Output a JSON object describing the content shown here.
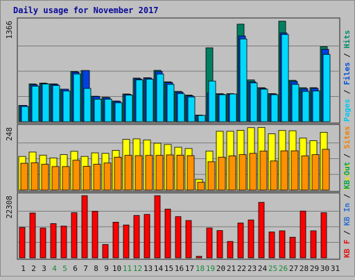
{
  "chart_data": {
    "type": "bar",
    "title": "Daily usage for November 2017",
    "categories": [
      "1",
      "2",
      "3",
      "4",
      "5",
      "6",
      "7",
      "8",
      "9",
      "10",
      "11",
      "12",
      "13",
      "14",
      "15",
      "16",
      "17",
      "18",
      "19",
      "20",
      "21",
      "22",
      "23",
      "24",
      "25",
      "26",
      "27",
      "28",
      "29",
      "30",
      "31"
    ],
    "weekend_days": [
      4,
      5,
      11,
      12,
      18,
      19,
      25,
      26
    ],
    "panels": [
      {
        "id": "hits-files-pages",
        "max_label": "1366",
        "ymax": 1366,
        "side_label_parts": [
          {
            "text": "Pages",
            "color": "#00c8f0"
          },
          {
            "text": " / ",
            "color": "#0a0a0a"
          },
          {
            "text": "Files",
            "color": "#0050e0"
          },
          {
            "text": " / ",
            "color": "#0a0a0a"
          },
          {
            "text": "Hits",
            "color": "#008a6a"
          }
        ],
        "series": [
          {
            "name": "Hits",
            "color": "#008060",
            "values": [
              220,
              512,
              522,
              512,
              440,
              680,
              692,
              345,
              330,
              280,
              375,
              590,
              595,
              695,
              540,
              410,
              360,
              90,
              1000,
              380,
              380,
              1320,
              565,
              460,
              380,
              1360,
              560,
              460,
              460,
              1015,
              0
            ]
          },
          {
            "name": "Files",
            "color": "#0040e0",
            "values": [
              220,
              500,
              515,
              505,
              440,
              670,
              692,
              340,
              325,
              275,
              370,
              580,
              590,
              680,
              530,
              400,
              350,
              85,
              390,
              370,
              370,
              1160,
              540,
              450,
              375,
              1200,
              545,
              445,
              450,
              980,
              0
            ]
          },
          {
            "name": "Pages",
            "color": "#00d8ff",
            "values": [
              205,
              480,
              510,
              490,
              415,
              645,
              450,
              305,
              305,
              255,
              360,
              565,
              575,
              645,
              505,
              380,
              335,
              85,
              550,
              365,
              375,
              1120,
              525,
              440,
              365,
              1180,
              505,
              410,
              415,
              910,
              0
            ]
          }
        ]
      },
      {
        "id": "visits-sites",
        "max_label": "248",
        "ymax": 248,
        "side_label_parts": [
          {
            "text": "Visits",
            "color": "#e8e800"
          },
          {
            "text": " / ",
            "color": "#0a0a0a"
          },
          {
            "text": "Sites",
            "color": "#f08000"
          }
        ],
        "series": [
          {
            "name": "Visits",
            "color": "#ffff00",
            "values": [
              133,
              150,
              138,
              127,
              140,
              153,
              133,
              147,
              145,
              157,
              200,
              202,
              198,
              185,
              180,
              169,
              164,
              43,
              154,
              232,
              232,
              236,
              246,
              247,
              222,
              235,
              234,
              205,
              195,
              228,
              0
            ]
          },
          {
            "name": "Sites",
            "color": "#ff9000",
            "values": [
              106,
              108,
              102,
              93,
              93,
              118,
              94,
              102,
              107,
              130,
              137,
              136,
              137,
              137,
              139,
              138,
              136,
              31,
              112,
              130,
              135,
              140,
              145,
              154,
              115,
              155,
              155,
              135,
              140,
              161,
              0
            ]
          }
        ]
      },
      {
        "id": "kbytes",
        "max_label": "22308",
        "ymax": 22308,
        "side_label_parts": [
          {
            "text": "KB F",
            "color": "#e01010"
          },
          {
            "text": " / ",
            "color": "#0a0a0a"
          },
          {
            "text": "KB In",
            "color": "#3070d0"
          },
          {
            "text": " / ",
            "color": "#0a0a0a"
          },
          {
            "text": "KB Out",
            "color": "#00a060"
          }
        ],
        "series": [
          {
            "name": "KB F",
            "color": "#ff0000",
            "values": [
              10900,
              16100,
              10700,
              12300,
              11400,
              16200,
              22308,
              16700,
              4800,
              12800,
              11800,
              15200,
              15600,
              22308,
              17500,
              14800,
              13400,
              550,
              10700,
              9800,
              5900,
              12500,
              13600,
              19900,
              9300,
              9700,
              7400,
              16800,
              9700,
              16200,
              0
            ]
          }
        ]
      }
    ]
  }
}
